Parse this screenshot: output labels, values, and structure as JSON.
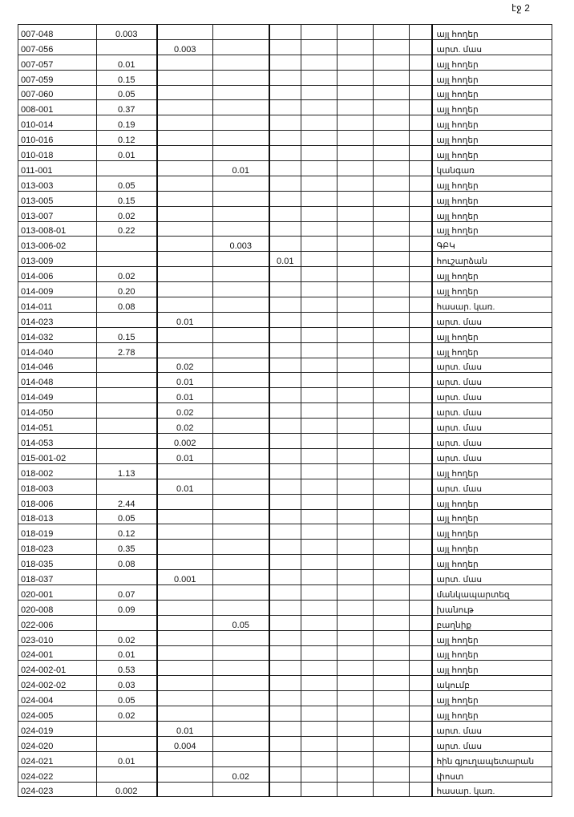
{
  "page_label": "էջ 2",
  "rows": [
    [
      "007-048",
      "0.003",
      "",
      "",
      "",
      "այլ հողեր"
    ],
    [
      "007-056",
      "",
      "0.003",
      "",
      "",
      "արտ. մաս"
    ],
    [
      "007-057",
      "0.01",
      "",
      "",
      "",
      "այլ հողեր"
    ],
    [
      "007-059",
      "0.15",
      "",
      "",
      "",
      "այլ հողեր"
    ],
    [
      "007-060",
      "0.05",
      "",
      "",
      "",
      "այլ հողեր"
    ],
    [
      "008-001",
      "0.37",
      "",
      "",
      "",
      "այլ հողեր"
    ],
    [
      "010-014",
      "0.19",
      "",
      "",
      "",
      "այլ հողեր"
    ],
    [
      "010-016",
      "0.12",
      "",
      "",
      "",
      "այլ հողեր"
    ],
    [
      "010-018",
      "0.01",
      "",
      "",
      "",
      "այլ հողեր"
    ],
    [
      "011-001",
      "",
      "",
      "0.01",
      "",
      "կանգառ"
    ],
    [
      "013-003",
      "0.05",
      "",
      "",
      "",
      "այլ հողեր"
    ],
    [
      "013-005",
      "0.15",
      "",
      "",
      "",
      "այլ հողեր"
    ],
    [
      "013-007",
      "0.02",
      "",
      "",
      "",
      "այլ հողեր"
    ],
    [
      "013-008-01",
      "0.22",
      "",
      "",
      "",
      "այլ հողեր"
    ],
    [
      "013-006-02",
      "",
      "",
      "0.003",
      "",
      "ԳԲԿ"
    ],
    [
      "013-009",
      "",
      "",
      "",
      "0.01",
      "հուշարձան"
    ],
    [
      "014-006",
      "0.02",
      "",
      "",
      "",
      "այլ հողեր"
    ],
    [
      "014-009",
      "0.20",
      "",
      "",
      "",
      "այլ հողեր"
    ],
    [
      "014-011",
      "0.08",
      "",
      "",
      "",
      "հասար. կառ."
    ],
    [
      "014-023",
      "",
      "0.01",
      "",
      "",
      "արտ. մաս"
    ],
    [
      "014-032",
      "0.15",
      "",
      "",
      "",
      "այլ հողեր"
    ],
    [
      "014-040",
      "2.78",
      "",
      "",
      "",
      "այլ հողեր"
    ],
    [
      "014-046",
      "",
      "0.02",
      "",
      "",
      "արտ. մաս"
    ],
    [
      "014-048",
      "",
      "0.01",
      "",
      "",
      "արտ. մաս"
    ],
    [
      "014-049",
      "",
      "0.01",
      "",
      "",
      "արտ. մաս"
    ],
    [
      "014-050",
      "",
      "0.02",
      "",
      "",
      "արտ. մաս"
    ],
    [
      "014-051",
      "",
      "0.02",
      "",
      "",
      "արտ. մաս"
    ],
    [
      "014-053",
      "",
      "0.002",
      "",
      "",
      "արտ. մաս"
    ],
    [
      "015-001-02",
      "",
      "0.01",
      "",
      "",
      "արտ. մաս"
    ],
    [
      "018-002",
      "1.13",
      "",
      "",
      "",
      "այլ հողեր"
    ],
    [
      "018-003",
      "",
      "0.01",
      "",
      "",
      "արտ. մաս"
    ],
    [
      "018-006",
      "2.44",
      "",
      "",
      "",
      "այլ հողեր"
    ],
    [
      "018-013",
      "0.05",
      "",
      "",
      "",
      "այլ հողեր"
    ],
    [
      "018-019",
      "0.12",
      "",
      "",
      "",
      "այլ հողեր"
    ],
    [
      "018-023",
      "0.35",
      "",
      "",
      "",
      "այլ հողեր"
    ],
    [
      "018-035",
      "0.08",
      "",
      "",
      "",
      "այլ հողեր"
    ],
    [
      "018-037",
      "",
      "0.001",
      "",
      "",
      "արտ. մաս"
    ],
    [
      "020-001",
      "0.07",
      "",
      "",
      "",
      "մանկապարտեզ"
    ],
    [
      "020-008",
      "0.09",
      "",
      "",
      "",
      "խանութ"
    ],
    [
      "022-006",
      "",
      "",
      "0.05",
      "",
      "բաղնիք"
    ],
    [
      "023-010",
      "0.02",
      "",
      "",
      "",
      "այլ հողեր"
    ],
    [
      "024-001",
      "0.01",
      "",
      "",
      "",
      "այլ հողեր"
    ],
    [
      "024-002-01",
      "0.53",
      "",
      "",
      "",
      "այլ հողեր"
    ],
    [
      "024-002-02",
      "0.03",
      "",
      "",
      "",
      "ակումբ"
    ],
    [
      "024-004",
      "0.05",
      "",
      "",
      "",
      "այլ հողեր"
    ],
    [
      "024-005",
      "0.02",
      "",
      "",
      "",
      "այլ հողեր"
    ],
    [
      "024-019",
      "",
      "0.01",
      "",
      "",
      "արտ. մաս"
    ],
    [
      "024-020",
      "",
      "0.004",
      "",
      "",
      "արտ. մաս"
    ],
    [
      "024-021",
      "0.01",
      "",
      "",
      "",
      "հին գյուղապետարան"
    ],
    [
      "024-022",
      "",
      "",
      "0.02",
      "",
      "փոստ"
    ],
    [
      "024-023",
      "0.002",
      "",
      "",
      "",
      "հասար. կառ."
    ]
  ]
}
